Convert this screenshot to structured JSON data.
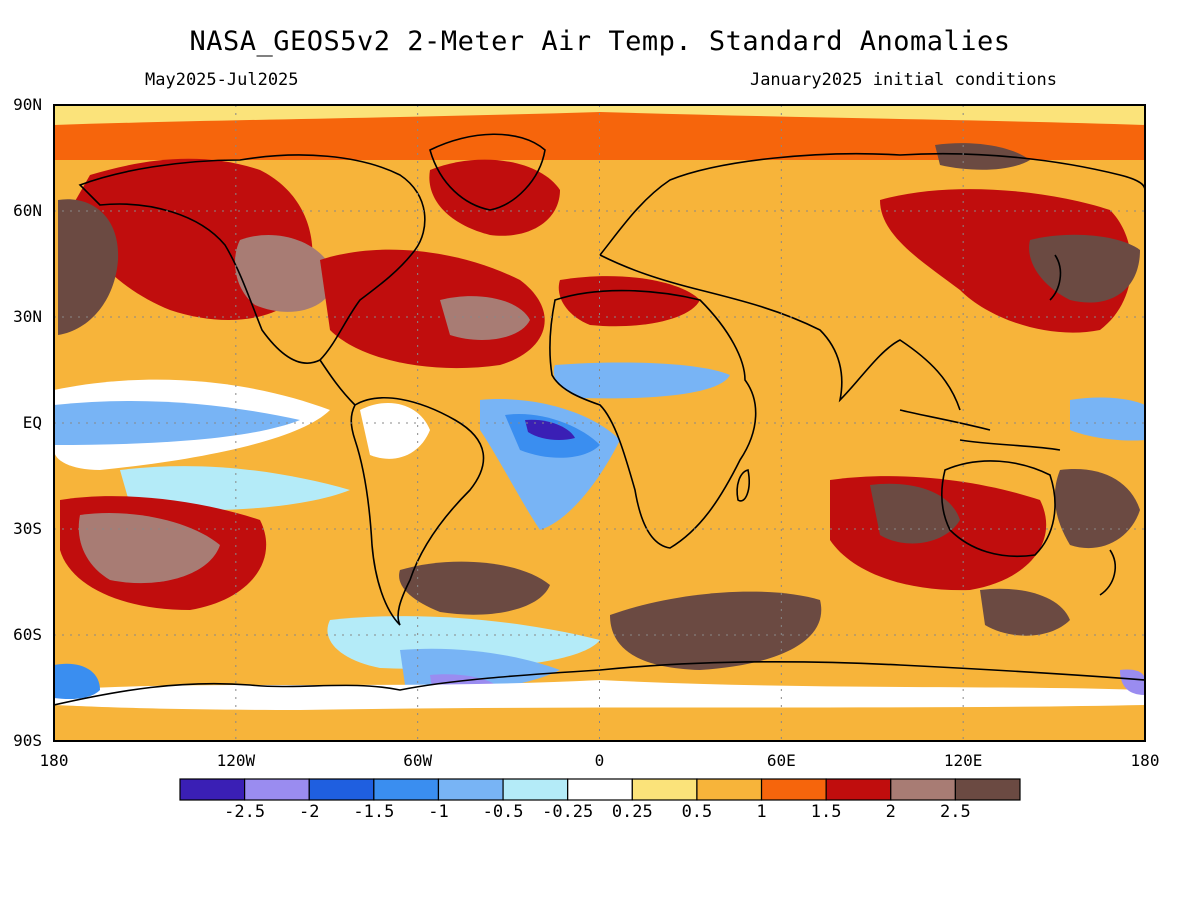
{
  "map": {
    "title": "NASA_GEOS5v2 2-Meter Air Temp. Standard Anomalies",
    "period": "May2025-Jul2025",
    "init": "January2025 initial conditions",
    "lat_labels": [
      "90N",
      "60N",
      "30N",
      "EQ",
      "30S",
      "60S",
      "90S"
    ],
    "lon_labels": [
      "180",
      "120W",
      "60W",
      "0",
      "60E",
      "120E",
      "180"
    ],
    "projection": "equirectangular",
    "gridlines": "dotted"
  },
  "legend": {
    "colors": [
      "#3a1fb5",
      "#9a8cf0",
      "#1f5fe0",
      "#3a8ef0",
      "#78b4f5",
      "#b4ebf8",
      "#ffffff",
      "#fbe37a",
      "#f7b43a",
      "#f6650c",
      "#c00d0d",
      "#a87c74",
      "#6b4a42"
    ],
    "labels": [
      "-2.5",
      "-2",
      "-1.5",
      "-1",
      "-0.5",
      "-0.25",
      "0.25",
      "0.5",
      "1",
      "1.5",
      "2",
      "2.5"
    ]
  }
}
